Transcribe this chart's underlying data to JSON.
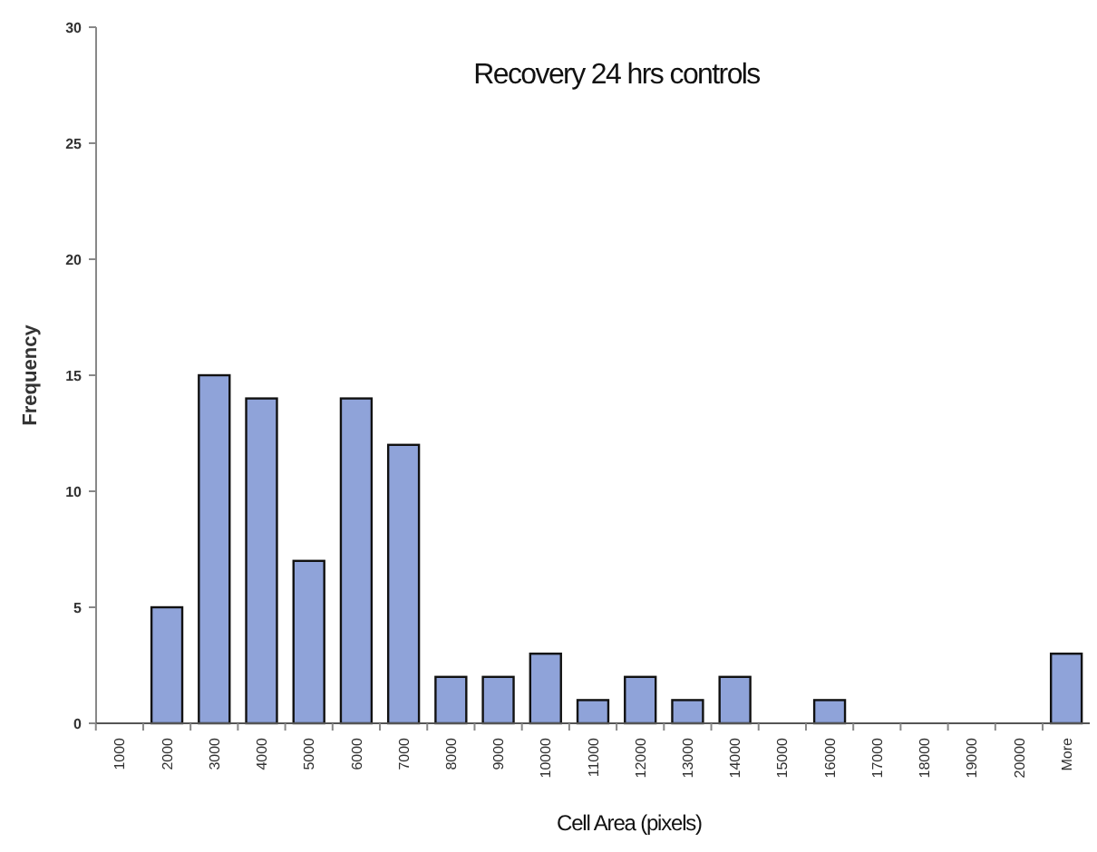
{
  "chart_data": {
    "type": "bar",
    "title": "Recovery 24 hrs controls",
    "xlabel": "Cell Area (pixels)",
    "ylabel": "Frequency",
    "categories": [
      "1000",
      "2000",
      "3000",
      "4000",
      "5000",
      "6000",
      "7000",
      "8000",
      "9000",
      "10000",
      "11000",
      "12000",
      "13000",
      "14000",
      "15000",
      "16000",
      "17000",
      "18000",
      "19000",
      "20000",
      "More"
    ],
    "values": [
      0,
      5,
      15,
      14,
      7,
      14,
      12,
      2,
      2,
      3,
      1,
      2,
      1,
      2,
      0,
      1,
      0,
      0,
      0,
      0,
      3
    ],
    "color": "#8fa3d9",
    "ylim": [
      0,
      30
    ],
    "yticks": [
      0,
      5,
      10,
      15,
      20,
      25,
      30
    ],
    "grid": false
  }
}
